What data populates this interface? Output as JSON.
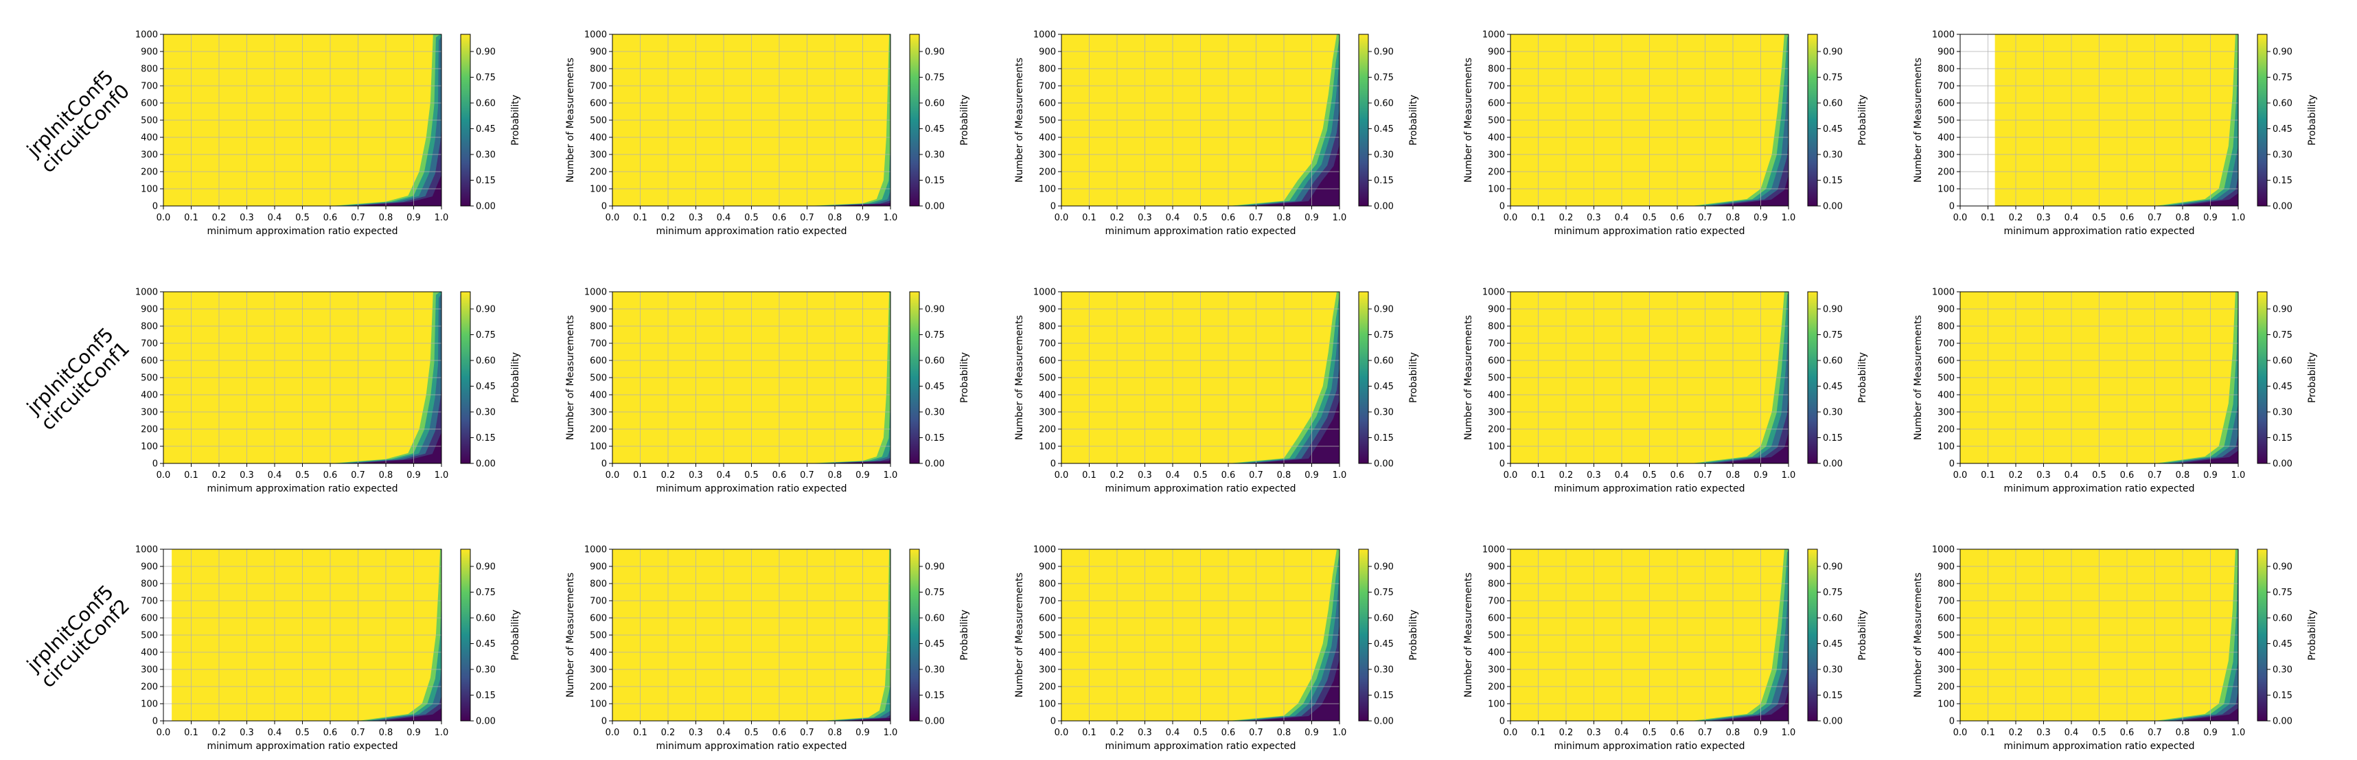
{
  "figure": {
    "row_labels": [
      [
        "jrpInitConf5",
        "circuitConf0"
      ],
      [
        "jrpInitConf5",
        "circuitConf1"
      ],
      [
        "jrpInitConf5",
        "circuitConf2"
      ]
    ]
  },
  "chart_data": {
    "type": "heatmap",
    "layout": "grid",
    "rows": 3,
    "cols": 5,
    "xlabel": "minimum approximation ratio expected",
    "ylabel": "Number of Measurements",
    "colorbar_label": "Probability",
    "xlim": [
      0.0,
      1.0
    ],
    "ylim": [
      0,
      1000
    ],
    "xticks": [
      "0.0",
      "0.1",
      "0.2",
      "0.3",
      "0.4",
      "0.5",
      "0.6",
      "0.7",
      "0.8",
      "0.9",
      "1.0"
    ],
    "yticks": [
      "0",
      "100",
      "200",
      "300",
      "400",
      "500",
      "600",
      "700",
      "800",
      "900",
      "1000"
    ],
    "colorbar_ticks": [
      "0.00",
      "0.15",
      "0.30",
      "0.45",
      "0.60",
      "0.75",
      "0.90"
    ],
    "colorbar_range": [
      0.0,
      1.0
    ],
    "colormap": [
      "#440154",
      "#3b528b",
      "#21918c",
      "#5ec962",
      "#fde725"
    ],
    "grid": true,
    "note_values": "Probability that the expected approximation ratio meets the threshold; cells are yellow (~1.0) except a dark region near x=1.0 at low measurement counts.",
    "panels": [
      {
        "row": 0,
        "col": 0,
        "show_ylabel": false,
        "valid_from_x": 0.0,
        "edge": [
          [
            0.6,
            0
          ],
          [
            0.8,
            25
          ],
          [
            0.88,
            60
          ],
          [
            0.92,
            200
          ],
          [
            0.945,
            400
          ],
          [
            0.96,
            600
          ],
          [
            0.965,
            800
          ],
          [
            0.97,
            1000
          ]
        ]
      },
      {
        "row": 0,
        "col": 1,
        "show_ylabel": true,
        "valid_from_x": 0.0,
        "edge": [
          [
            0.7,
            0
          ],
          [
            0.9,
            15
          ],
          [
            0.95,
            40
          ],
          [
            0.975,
            150
          ],
          [
            0.985,
            400
          ],
          [
            0.99,
            700
          ],
          [
            0.995,
            1000
          ]
        ]
      },
      {
        "row": 0,
        "col": 2,
        "show_ylabel": true,
        "valid_from_x": 0.0,
        "edge": [
          [
            0.6,
            0
          ],
          [
            0.8,
            30
          ],
          [
            0.85,
            150
          ],
          [
            0.9,
            250
          ],
          [
            0.94,
            450
          ],
          [
            0.96,
            650
          ],
          [
            0.975,
            850
          ],
          [
            0.99,
            1000
          ]
        ]
      },
      {
        "row": 0,
        "col": 3,
        "show_ylabel": true,
        "valid_from_x": 0.0,
        "edge": [
          [
            0.65,
            0
          ],
          [
            0.85,
            40
          ],
          [
            0.9,
            100
          ],
          [
            0.94,
            300
          ],
          [
            0.96,
            550
          ],
          [
            0.975,
            800
          ],
          [
            0.985,
            1000
          ]
        ]
      },
      {
        "row": 0,
        "col": 4,
        "show_ylabel": true,
        "valid_from_x": 0.125,
        "edge": [
          [
            0.7,
            0
          ],
          [
            0.88,
            40
          ],
          [
            0.93,
            100
          ],
          [
            0.965,
            350
          ],
          [
            0.98,
            650
          ],
          [
            0.99,
            1000
          ]
        ]
      },
      {
        "row": 1,
        "col": 0,
        "show_ylabel": false,
        "valid_from_x": 0.0,
        "edge": [
          [
            0.6,
            0
          ],
          [
            0.8,
            25
          ],
          [
            0.88,
            60
          ],
          [
            0.92,
            200
          ],
          [
            0.945,
            400
          ],
          [
            0.96,
            600
          ],
          [
            0.965,
            800
          ],
          [
            0.97,
            1000
          ]
        ]
      },
      {
        "row": 1,
        "col": 1,
        "show_ylabel": true,
        "valid_from_x": 0.0,
        "edge": [
          [
            0.7,
            0
          ],
          [
            0.9,
            15
          ],
          [
            0.95,
            40
          ],
          [
            0.975,
            150
          ],
          [
            0.985,
            400
          ],
          [
            0.99,
            700
          ],
          [
            0.995,
            1000
          ]
        ]
      },
      {
        "row": 1,
        "col": 2,
        "show_ylabel": true,
        "valid_from_x": 0.0,
        "edge": [
          [
            0.6,
            0
          ],
          [
            0.8,
            30
          ],
          [
            0.85,
            150
          ],
          [
            0.9,
            280
          ],
          [
            0.94,
            450
          ],
          [
            0.96,
            650
          ],
          [
            0.975,
            850
          ],
          [
            0.99,
            1000
          ]
        ]
      },
      {
        "row": 1,
        "col": 3,
        "show_ylabel": true,
        "valid_from_x": 0.0,
        "edge": [
          [
            0.65,
            0
          ],
          [
            0.85,
            40
          ],
          [
            0.9,
            100
          ],
          [
            0.94,
            300
          ],
          [
            0.96,
            550
          ],
          [
            0.975,
            800
          ],
          [
            0.985,
            1000
          ]
        ]
      },
      {
        "row": 1,
        "col": 4,
        "show_ylabel": true,
        "valid_from_x": 0.0,
        "edge": [
          [
            0.7,
            0
          ],
          [
            0.88,
            40
          ],
          [
            0.93,
            100
          ],
          [
            0.965,
            350
          ],
          [
            0.98,
            650
          ],
          [
            0.99,
            1000
          ]
        ]
      },
      {
        "row": 2,
        "col": 0,
        "show_ylabel": false,
        "valid_from_x": 0.03,
        "edge": [
          [
            0.7,
            0
          ],
          [
            0.88,
            40
          ],
          [
            0.93,
            100
          ],
          [
            0.96,
            250
          ],
          [
            0.98,
            500
          ],
          [
            0.99,
            800
          ],
          [
            0.995,
            1000
          ]
        ]
      },
      {
        "row": 2,
        "col": 1,
        "show_ylabel": true,
        "valid_from_x": 0.0,
        "edge": [
          [
            0.75,
            0
          ],
          [
            0.92,
            20
          ],
          [
            0.96,
            60
          ],
          [
            0.98,
            200
          ],
          [
            0.99,
            500
          ],
          [
            0.995,
            1000
          ]
        ]
      },
      {
        "row": 2,
        "col": 2,
        "show_ylabel": true,
        "valid_from_x": 0.0,
        "edge": [
          [
            0.6,
            0
          ],
          [
            0.8,
            30
          ],
          [
            0.85,
            100
          ],
          [
            0.9,
            250
          ],
          [
            0.94,
            450
          ],
          [
            0.96,
            650
          ],
          [
            0.975,
            850
          ],
          [
            0.99,
            1000
          ]
        ]
      },
      {
        "row": 2,
        "col": 3,
        "show_ylabel": true,
        "valid_from_x": 0.0,
        "edge": [
          [
            0.65,
            0
          ],
          [
            0.85,
            40
          ],
          [
            0.9,
            100
          ],
          [
            0.94,
            300
          ],
          [
            0.96,
            550
          ],
          [
            0.975,
            800
          ],
          [
            0.985,
            1000
          ]
        ]
      },
      {
        "row": 2,
        "col": 4,
        "show_ylabel": true,
        "valid_from_x": 0.0,
        "edge": [
          [
            0.7,
            0
          ],
          [
            0.88,
            40
          ],
          [
            0.93,
            100
          ],
          [
            0.965,
            350
          ],
          [
            0.98,
            650
          ],
          [
            0.99,
            1000
          ]
        ]
      }
    ]
  }
}
